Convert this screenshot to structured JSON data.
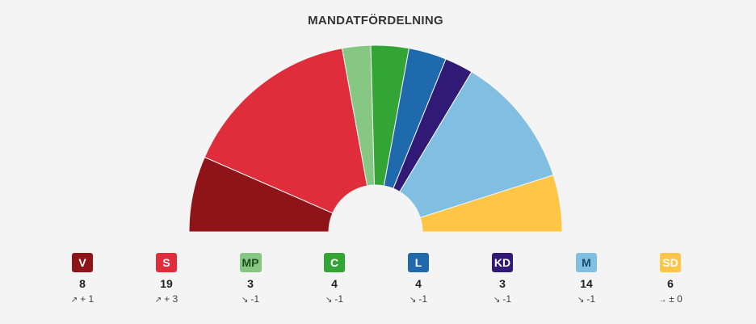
{
  "chart_data": {
    "type": "parliament-semicircle",
    "title": "MANDATFÖRDELNING",
    "series": [
      {
        "name": "V",
        "seats": 8,
        "change": "+ 1",
        "trend": "up",
        "color": "#8f1417",
        "text_color": "#ffffff"
      },
      {
        "name": "S",
        "seats": 19,
        "change": "+ 3",
        "trend": "up",
        "color": "#e02d3c",
        "text_color": "#ffffff"
      },
      {
        "name": "MP",
        "seats": 3,
        "change": "-1",
        "trend": "down",
        "color": "#86c784",
        "text_color": "#1f4d1f"
      },
      {
        "name": "C",
        "seats": 4,
        "change": "-1",
        "trend": "down",
        "color": "#32a535",
        "text_color": "#ffffff"
      },
      {
        "name": "L",
        "seats": 4,
        "change": "-1",
        "trend": "down",
        "color": "#1f69ad",
        "text_color": "#ffffff"
      },
      {
        "name": "KD",
        "seats": 3,
        "change": "-1",
        "trend": "down",
        "color": "#311a75",
        "text_color": "#ffffff"
      },
      {
        "name": "M",
        "seats": 14,
        "change": "-1",
        "trend": "down",
        "color": "#80bfe2",
        "text_color": "#1b4a6b"
      },
      {
        "name": "SD",
        "seats": 6,
        "change": "± 0",
        "trend": "flat",
        "color": "#fec546",
        "text_color": "#ffffff"
      }
    ]
  }
}
